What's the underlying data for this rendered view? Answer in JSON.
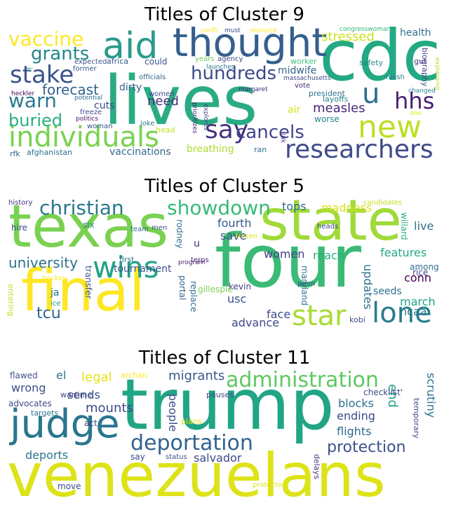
{
  "panels": [
    {
      "title": "Titles of Cluster 9",
      "words": [
        {
          "text": "lives",
          "color": "#2bab84"
        },
        {
          "text": "cdc",
          "color": "#23a983"
        },
        {
          "text": "thought",
          "color": "#355f8d"
        },
        {
          "text": "aid",
          "color": "#2c9a8b"
        },
        {
          "text": "individuals",
          "color": "#7ad151"
        },
        {
          "text": "researchers",
          "color": "#3e4a89"
        },
        {
          "text": "say",
          "color": "#46337f"
        },
        {
          "text": "new",
          "color": "#bddf26"
        },
        {
          "text": "cancels",
          "color": "#41458a"
        },
        {
          "text": "stake",
          "color": "#3b528b"
        },
        {
          "text": "hundreds",
          "color": "#3e4989"
        },
        {
          "text": "vaccine",
          "color": "#fde725"
        },
        {
          "text": "grants",
          "color": "#24868e"
        },
        {
          "text": "warn",
          "color": "#2a788e"
        },
        {
          "text": "buried",
          "color": "#29af7f"
        },
        {
          "text": "u",
          "color": "#2e6e8e"
        },
        {
          "text": "hhs",
          "color": "#481f70"
        },
        {
          "text": "forecast",
          "color": "#33638d"
        },
        {
          "text": "measles",
          "color": "#482878"
        },
        {
          "text": "stressed",
          "color": "#cae11f"
        },
        {
          "text": "health",
          "color": "#2d708e"
        },
        {
          "text": "vaccinations",
          "color": "#31688e"
        },
        {
          "text": "need",
          "color": "#472d7b"
        },
        {
          "text": "breathing",
          "color": "#addc30"
        },
        {
          "text": "midwife",
          "color": "#32648e"
        },
        {
          "text": "cuts",
          "color": "#3f4889"
        },
        {
          "text": "dirty",
          "color": "#355e8d"
        },
        {
          "text": "layoffs",
          "color": "#26828e"
        },
        {
          "text": "worse",
          "color": "#24878e"
        },
        {
          "text": "air",
          "color": "#d0e11c"
        },
        {
          "text": "could",
          "color": "#3b528b"
        },
        {
          "text": "africa",
          "color": "#365c8d"
        },
        {
          "text": "expected",
          "color": "#3a548c"
        },
        {
          "text": "officials",
          "color": "#33638d"
        },
        {
          "text": "years",
          "color": "#6ccd5a"
        },
        {
          "text": "agency",
          "color": "#3f4788"
        },
        {
          "text": "worker",
          "color": "#43bf71"
        },
        {
          "text": "vote",
          "color": "#482475"
        },
        {
          "text": "safety",
          "color": "#23898e"
        },
        {
          "text": "president",
          "color": "#2c728e"
        },
        {
          "text": "biography",
          "color": "#3f4889"
        },
        {
          "text": "congresswoman",
          "color": "#35b779"
        },
        {
          "text": "confli",
          "color": "#fde725"
        },
        {
          "text": "must",
          "color": "#404688"
        },
        {
          "text": "resource",
          "color": "#fde725"
        },
        {
          "text": "gut",
          "color": "#46327e"
        },
        {
          "text": "niosh",
          "color": "#2a788e"
        },
        {
          "text": "explaining",
          "color": "#b5de2b"
        },
        {
          "text": "changed",
          "color": "#26828e"
        },
        {
          "text": "one",
          "color": "#e5e419"
        },
        {
          "text": "massachusetts",
          "color": "#3e4a89"
        },
        {
          "text": "launches",
          "color": "#2a788e"
        },
        {
          "text": "prioritizes",
          "color": "#481f70"
        },
        {
          "text": "explores",
          "color": "#3e4989"
        },
        {
          "text": "link",
          "color": "#46327e"
        },
        {
          "text": "margaret",
          "color": "#482878"
        },
        {
          "text": "ran",
          "color": "#2c728e"
        },
        {
          "text": "head",
          "color": "#c2df23"
        },
        {
          "text": "joke",
          "color": "#287c8e"
        },
        {
          "text": "women",
          "color": "#3e4989"
        },
        {
          "text": "freeze",
          "color": "#404688"
        },
        {
          "text": "politics",
          "color": "#471063"
        },
        {
          "text": "woman",
          "color": "#3b528b"
        },
        {
          "text": "former",
          "color": "#39568c"
        },
        {
          "text": "potential",
          "color": "#2f6c8e"
        },
        {
          "text": "heckler",
          "color": "#440154"
        },
        {
          "text": "jr",
          "color": "#1f948c"
        },
        {
          "text": "rfk",
          "color": "#355f8d"
        },
        {
          "text": "afghanistan",
          "color": "#2c728e"
        }
      ]
    },
    {
      "title": "Titles of Cluster 5",
      "words": [
        {
          "text": "texas",
          "color": "#7ad151"
        },
        {
          "text": "state",
          "color": "#a0da39"
        },
        {
          "text": "four",
          "color": "#3aba76"
        },
        {
          "text": "final",
          "color": "#fde725"
        },
        {
          "text": "wins",
          "color": "#20a386"
        },
        {
          "text": "christian",
          "color": "#2a788e"
        },
        {
          "text": "showdown",
          "color": "#38b977"
        },
        {
          "text": "star",
          "color": "#a8db34"
        },
        {
          "text": "lone",
          "color": "#287d8e"
        },
        {
          "text": "university",
          "color": "#2c728e"
        },
        {
          "text": "tcu",
          "color": "#33638d"
        },
        {
          "text": "madness",
          "color": "#d8e219"
        },
        {
          "text": "tops",
          "color": "#2f6b8e"
        },
        {
          "text": "live",
          "color": "#2d708e"
        },
        {
          "text": "fourth",
          "color": "#375b8d"
        },
        {
          "text": "save",
          "color": "#3b528b"
        },
        {
          "text": "women",
          "color": "#433e85"
        },
        {
          "text": "reach",
          "color": "#27ad81"
        },
        {
          "text": "features",
          "color": "#22a884"
        },
        {
          "text": "updates",
          "color": "#2c728e"
        },
        {
          "text": "march",
          "color": "#20a386"
        },
        {
          "text": "conn",
          "color": "#440154"
        },
        {
          "text": "usc",
          "color": "#3b528b"
        },
        {
          "text": "face",
          "color": "#3e4a89"
        },
        {
          "text": "seeds",
          "color": "#2c728e"
        },
        {
          "text": "advance",
          "color": "#3f4788"
        },
        {
          "text": "ncaa",
          "color": "#2a788e"
        },
        {
          "text": "rice",
          "color": "#3e4989"
        },
        {
          "text": "tournament",
          "color": "#3b528b"
        },
        {
          "text": "among",
          "color": "#2d708e"
        },
        {
          "text": "rodney",
          "color": "#2d708e"
        },
        {
          "text": "u",
          "color": "#472d7b"
        },
        {
          "text": "hire",
          "color": "#3f4889"
        },
        {
          "text": "six",
          "color": "#26828e"
        },
        {
          "text": "first",
          "color": "#2d708e"
        },
        {
          "text": "team",
          "color": "#31688e"
        },
        {
          "text": "men",
          "color": "#3e4989"
        },
        {
          "text": "frozen",
          "color": "#dde318"
        },
        {
          "text": "heads",
          "color": "#3e4989"
        },
        {
          "text": "candidates",
          "color": "#c8e020"
        },
        {
          "text": "willard",
          "color": "#27ad81"
        },
        {
          "text": "history",
          "color": "#46327e"
        },
        {
          "text": "terps",
          "color": "#482475"
        },
        {
          "text": "kevin",
          "color": "#433e85"
        },
        {
          "text": "program",
          "color": "#481a6c"
        },
        {
          "text": "transfer",
          "color": "#3b528b"
        },
        {
          "text": "portal",
          "color": "#33638d"
        },
        {
          "text": "replace",
          "color": "#2f6b8e"
        },
        {
          "text": "gillespie",
          "color": "#7ad151"
        },
        {
          "text": "maryland",
          "color": "#2c728e"
        },
        {
          "text": "penn",
          "color": "#3b528b"
        },
        {
          "text": "kobi",
          "color": "#3e4989"
        },
        {
          "text": "ja",
          "color": "#2d708e"
        },
        {
          "text": "ice",
          "color": "#1f948c"
        },
        {
          "text": "hockey",
          "color": "#fde725"
        },
        {
          "text": "entering",
          "color": "#c2df23"
        }
      ]
    },
    {
      "title": "Titles of Cluster 11",
      "words": [
        {
          "text": "trump",
          "color": "#21a585"
        },
        {
          "text": "venezuelans",
          "color": "#dde318"
        },
        {
          "text": "judge",
          "color": "#2a768e"
        },
        {
          "text": "administration",
          "color": "#5ec962"
        },
        {
          "text": "deportation",
          "color": "#33638d"
        },
        {
          "text": "protection",
          "color": "#3b528b"
        },
        {
          "text": "migrants",
          "color": "#39568c"
        },
        {
          "text": "legal",
          "color": "#e5e419"
        },
        {
          "text": "mounts",
          "color": "#3e4989"
        },
        {
          "text": "el",
          "color": "#2c728e"
        },
        {
          "text": "wrong",
          "color": "#3b528b"
        },
        {
          "text": "sends",
          "color": "#3b528b"
        },
        {
          "text": "people",
          "color": "#3e4989"
        },
        {
          "text": "blocks",
          "color": "#2d708e"
        },
        {
          "text": "ending",
          "color": "#3e4989"
        },
        {
          "text": "flights",
          "color": "#2f6b8e"
        },
        {
          "text": "salvador",
          "color": "#3e4989"
        },
        {
          "text": "deports",
          "color": "#2c728e"
        },
        {
          "text": "end",
          "color": "#20a386"
        },
        {
          "text": "scrutiny",
          "color": "#2c728e"
        },
        {
          "text": "temporary",
          "color": "#3f4889"
        },
        {
          "text": "checklist'",
          "color": "#3e4989"
        },
        {
          "text": "pauses",
          "color": "#3e4989"
        },
        {
          "text": "flawed",
          "color": "#3b528b"
        },
        {
          "text": "archaic",
          "color": "#fde725"
        },
        {
          "text": "wartime",
          "color": "#404688"
        },
        {
          "text": "advocates",
          "color": "#3e4989"
        },
        {
          "text": "targets",
          "color": "#2d708e"
        },
        {
          "text": "act",
          "color": "#433e85"
        },
        {
          "text": "plans",
          "color": "#dde318"
        },
        {
          "text": "say",
          "color": "#3e4989"
        },
        {
          "text": "status",
          "color": "#3b528b"
        },
        {
          "text": "delays",
          "color": "#46327e"
        },
        {
          "text": "move",
          "color": "#3e4989"
        },
        {
          "text": "protected",
          "color": "#d8e219"
        }
      ]
    }
  ]
}
